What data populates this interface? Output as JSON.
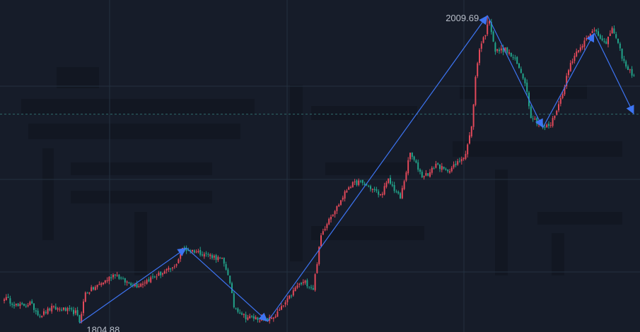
{
  "chart_data": {
    "type": "candlestick",
    "colors": {
      "background": "#161c29",
      "up": "#e2495a",
      "down": "#22a38a",
      "trend": "#3d74f2",
      "grid": "#243140",
      "reference_line": "#2f6b6b",
      "label": "#b7bdc8"
    },
    "annotations": {
      "high_label": "2009.69",
      "low_label": "1804.88"
    },
    "high": {
      "index": 244,
      "value": 2009.69
    },
    "low": {
      "index": 38,
      "value": 1804.88
    },
    "reference_level": 1944,
    "y_range": [
      1799,
      2020
    ],
    "trend_points": [
      {
        "index": 38,
        "value": 1804.88
      },
      {
        "index": 92,
        "value": 1855
      },
      {
        "index": 133,
        "value": 1806
      },
      {
        "index": 244,
        "value": 2009.69
      },
      {
        "index": 272,
        "value": 1935
      },
      {
        "index": 298,
        "value": 1998
      },
      {
        "index": 318,
        "value": 1944
      }
    ],
    "anchors": [
      [
        0,
        1822
      ],
      [
        7,
        1816
      ],
      [
        13,
        1818
      ],
      [
        18,
        1810
      ],
      [
        24,
        1815
      ],
      [
        30,
        1814
      ],
      [
        36,
        1812
      ],
      [
        38,
        1806
      ],
      [
        41,
        1825
      ],
      [
        45,
        1828
      ],
      [
        52,
        1834
      ],
      [
        56,
        1838
      ],
      [
        60,
        1833
      ],
      [
        67,
        1830
      ],
      [
        76,
        1836
      ],
      [
        86,
        1842
      ],
      [
        90,
        1854
      ],
      [
        96,
        1853
      ],
      [
        104,
        1850
      ],
      [
        110,
        1847
      ],
      [
        113,
        1838
      ],
      [
        116,
        1816
      ],
      [
        122,
        1809
      ],
      [
        129,
        1808
      ],
      [
        133,
        1807
      ],
      [
        137,
        1810
      ],
      [
        143,
        1820
      ],
      [
        148,
        1830
      ],
      [
        152,
        1832
      ],
      [
        156,
        1828
      ],
      [
        160,
        1863
      ],
      [
        164,
        1875
      ],
      [
        168,
        1882
      ],
      [
        174,
        1896
      ],
      [
        179,
        1899
      ],
      [
        184,
        1896
      ],
      [
        190,
        1890
      ],
      [
        194,
        1900
      ],
      [
        200,
        1888
      ],
      [
        205,
        1918
      ],
      [
        211,
        1903
      ],
      [
        215,
        1905
      ],
      [
        218,
        1911
      ],
      [
        223,
        1906
      ],
      [
        228,
        1910
      ],
      [
        233,
        1918
      ],
      [
        236,
        1935
      ],
      [
        238,
        1968
      ],
      [
        240,
        1988
      ],
      [
        243,
        1998
      ],
      [
        245,
        2007
      ],
      [
        248,
        1986
      ],
      [
        253,
        1987
      ],
      [
        258,
        1980
      ],
      [
        263,
        1966
      ],
      [
        266,
        1943
      ],
      [
        272,
        1935
      ],
      [
        276,
        1937
      ],
      [
        281,
        1954
      ],
      [
        286,
        1978
      ],
      [
        290,
        1988
      ],
      [
        295,
        1995
      ],
      [
        298,
        2001
      ],
      [
        302,
        1994
      ],
      [
        304,
        1990
      ],
      [
        307,
        2002
      ],
      [
        310,
        1990
      ],
      [
        314,
        1975
      ],
      [
        318,
        1970
      ]
    ]
  }
}
